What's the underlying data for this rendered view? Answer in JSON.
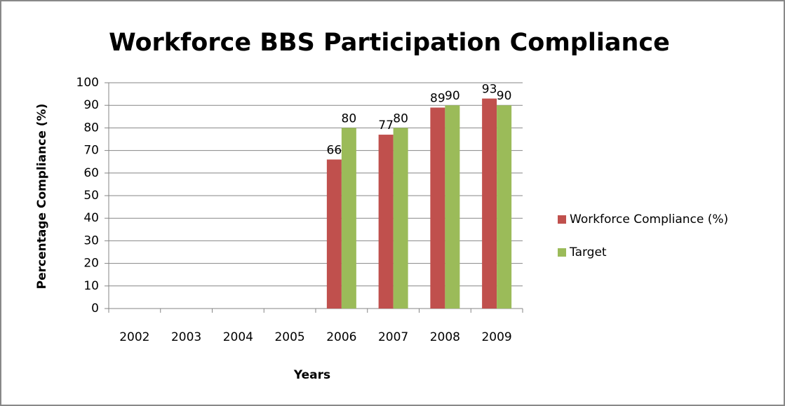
{
  "chart_data": {
    "type": "bar",
    "title": "Workforce BBS Participation Compliance",
    "x_label": "Years",
    "y_label": "Percentage Compliance (%)",
    "categories": [
      "2002",
      "2003",
      "2004",
      "2005",
      "2006",
      "2007",
      "2008",
      "2009"
    ],
    "series": [
      {
        "name": "Workforce Compliance (%)",
        "color": "#c0504d",
        "values": [
          null,
          null,
          null,
          null,
          66,
          77,
          89,
          93
        ]
      },
      {
        "name": "Target",
        "color": "#9bbb59",
        "values": [
          null,
          null,
          null,
          null,
          80,
          80,
          90,
          90
        ]
      }
    ],
    "ylim": [
      0,
      100
    ],
    "yticks": [
      0,
      10,
      20,
      30,
      40,
      50,
      60,
      70,
      80,
      90,
      100
    ],
    "grid": true,
    "legend": "right",
    "data_labels": true
  }
}
